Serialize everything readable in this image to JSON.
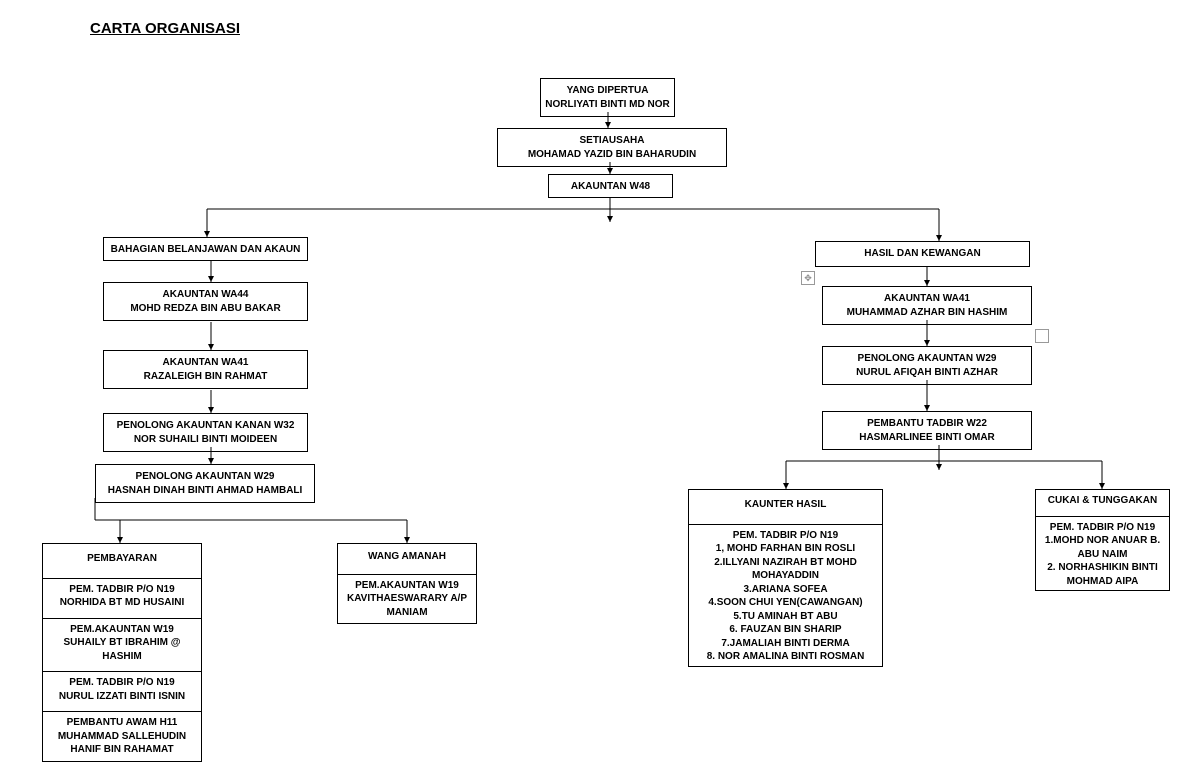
{
  "title": "CARTA ORGANISASI",
  "style": {
    "font_family": "Arial",
    "box_border_color": "#000000",
    "box_background": "#ffffff",
    "title_fontsize": 15,
    "node_fontsize": 10,
    "font_weight": "bold",
    "line_color": "#000000",
    "line_width": 1
  },
  "nodes": {
    "ydp": {
      "title": "YANG DIPERTUA",
      "name": "NORLIYATI BINTI MD NOR"
    },
    "setia": {
      "title": "SETIAUSAHA",
      "name": "MOHAMAD YAZID BIN BAHARUDIN"
    },
    "akw48": {
      "title": "AKAUNTAN W48"
    },
    "bba": {
      "title": "BAHAGIAN BELANJAWAN DAN AKAUN"
    },
    "hdk": {
      "title": "HASIL DAN KEWANGAN"
    },
    "wa44": {
      "title": "AKAUNTAN WA44",
      "name": "MOHD REDZA BIN ABU BAKAR"
    },
    "wa41l": {
      "title": "AKAUNTAN WA41",
      "name": "RAZALEIGH BIN RAHMAT"
    },
    "wa41r": {
      "title": "AKAUNTAN WA41",
      "name": "MUHAMMAD AZHAR BIN HASHIM"
    },
    "w32": {
      "title": "PENOLONG AKAUNTAN KANAN W32",
      "name": "NOR SUHAILI BINTI MOIDEEN"
    },
    "w29l": {
      "title": "PENOLONG AKAUNTAN W29",
      "name": "HASNAH DINAH BINTI AHMAD HAMBALI"
    },
    "w29r": {
      "title": "PENOLONG AKAUNTAN W29",
      "name": "NURUL AFIQAH BINTI AZHAR"
    },
    "w22r": {
      "title": "PEMBANTU TADBIR W22",
      "name": "HASMARLINEE BINTI OMAR"
    },
    "pembayaran": {
      "header": "PEMBAYARAN",
      "rows": [
        "PEM. TADBIR P/O N19\nNORHIDA BT MD HUSAINI",
        "PEM.AKAUNTAN W19\nSUHAILY BT IBRAHIM @ HASHIM",
        "PEM. TADBIR P/O N19\nNURUL IZZATI BINTI ISNIN",
        "PEMBANTU AWAM H11\nMUHAMMAD SALLEHUDIN HANIF BIN RAHAMAT"
      ]
    },
    "wang": {
      "header": "WANG AMANAH",
      "rows": [
        "PEM.AKAUNTAN W19\nKAVITHAESWARARY A/P MANIAM"
      ]
    },
    "kaunter": {
      "header": "KAUNTER HASIL",
      "subheader": "PEM. TADBIR P/O N19",
      "items": [
        "1, MOHD FARHAN BIN ROSLI",
        "2.ILLYANI NAZIRAH BT MOHD MOHAYADDIN",
        "3.ARIANA SOFEA",
        "4.SOON CHUI YEN(CAWANGAN)",
        "5.TU AMINAH BT ABU",
        "6. FAUZAN BIN SHARIP",
        "7.JAMALIAH BINTI DERMA",
        "8. NOR AMALINA BINTI ROSMAN"
      ]
    },
    "cukai": {
      "header": "CUKAI & TUNGGAKAN",
      "subheader": "PEM. TADBIR P/O N19",
      "items": [
        "1.MOHD NOR ANUAR B. ABU NAIM",
        "2. NORHASHIKIN BINTI MOHMAD AIPA"
      ]
    }
  }
}
